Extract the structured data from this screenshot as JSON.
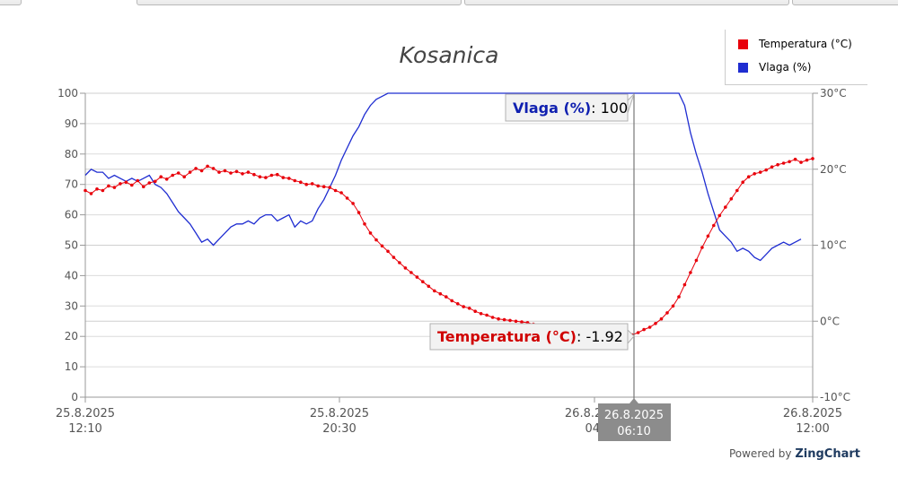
{
  "page": {
    "powered_by_label": "Powered by",
    "powered_by_brand": "ZingChart"
  },
  "chart_data": {
    "type": "line",
    "title": "Kosanica",
    "x_tick_labels": [
      {
        "line1": "25.8.2025",
        "line2": "12:10"
      },
      {
        "line1": "25.8.2025",
        "line2": "20:30"
      },
      {
        "line1": "26.8.2025",
        "line2": "04:"
      },
      {
        "line1": "26.8.2025",
        "line2": "12:00"
      }
    ],
    "y_left": {
      "ticks": [
        "0",
        "10",
        "20",
        "30",
        "40",
        "50",
        "60",
        "70",
        "80",
        "90",
        "100"
      ],
      "range": [
        0,
        100
      ]
    },
    "y_right": {
      "ticks": [
        "-10°C",
        "0°C",
        "10°C",
        "20°C",
        "30°C"
      ],
      "range": [
        -10,
        30
      ]
    },
    "grid": true,
    "legend_position": "top-right",
    "crosshair": {
      "x_label_line1": "26.8.2025",
      "x_label_line2": "06:10"
    },
    "tooltips": {
      "humidity": {
        "series": "Vlaga (%)",
        "value": "100"
      },
      "temperature": {
        "series": "Temperatura (°C)",
        "value": "-1.92"
      }
    },
    "colors": {
      "temperature": "#e8000b",
      "humidity": "#1f2dd1",
      "tooltip_temp": "#d00000",
      "tooltip_hum": "#1020b0"
    },
    "series": [
      {
        "name": "Temperatura (°C)",
        "axis": "right",
        "values": [
          17.2,
          16.8,
          17.4,
          17.2,
          17.8,
          17.6,
          18.1,
          18.3,
          17.9,
          18.5,
          17.7,
          18.2,
          18.4,
          19.0,
          18.7,
          19.2,
          19.5,
          19.0,
          19.6,
          20.1,
          19.8,
          20.4,
          20.1,
          19.6,
          19.8,
          19.5,
          19.7,
          19.4,
          19.6,
          19.3,
          19.0,
          18.9,
          19.2,
          19.3,
          18.9,
          18.8,
          18.5,
          18.3,
          18.0,
          18.1,
          17.8,
          17.7,
          17.6,
          17.2,
          16.9,
          16.2,
          15.5,
          14.3,
          12.8,
          11.6,
          10.7,
          9.9,
          9.2,
          8.4,
          7.7,
          7.0,
          6.4,
          5.8,
          5.2,
          4.6,
          4.0,
          3.6,
          3.2,
          2.7,
          2.3,
          1.9,
          1.7,
          1.3,
          1.0,
          0.8,
          0.5,
          0.3,
          0.2,
          0.1,
          0.0,
          -0.1,
          -0.2,
          -0.4,
          -0.5,
          -0.6,
          -0.7,
          -0.8,
          -0.9,
          -1.0,
          -1.1,
          -1.2,
          -1.3,
          -1.4,
          -1.5,
          -1.6,
          -1.7,
          -1.8,
          -1.9,
          -1.92,
          -1.8,
          -1.5,
          -1.1,
          -0.8,
          -0.3,
          0.3,
          1.1,
          2.0,
          3.2,
          4.8,
          6.4,
          8.0,
          9.7,
          11.2,
          12.6,
          13.9,
          15.0,
          16.1,
          17.2,
          18.3,
          19.0,
          19.4,
          19.6,
          19.9,
          20.3,
          20.6,
          20.8,
          21.0,
          21.3,
          20.9,
          21.2,
          21.4
        ]
      },
      {
        "name": "Vlaga (%)",
        "axis": "left",
        "values": [
          73,
          75,
          74,
          74,
          72,
          73,
          72,
          71,
          72,
          71,
          72,
          73,
          70,
          69,
          67,
          64,
          61,
          59,
          57,
          54,
          51,
          52,
          50,
          52,
          54,
          56,
          57,
          57,
          58,
          57,
          59,
          60,
          60,
          58,
          59,
          60,
          56,
          58,
          57,
          58,
          62,
          65,
          69,
          73,
          78,
          82,
          86,
          89,
          93,
          96,
          98,
          99,
          100,
          100,
          100,
          100,
          100,
          100,
          100,
          100,
          100,
          100,
          100,
          100,
          100,
          100,
          100,
          100,
          100,
          100,
          100,
          100,
          100,
          100,
          100,
          100,
          100,
          100,
          100,
          100,
          100,
          100,
          100,
          100,
          100,
          100,
          100,
          100,
          100,
          100,
          100,
          100,
          100,
          100,
          100,
          100,
          100,
          100,
          100,
          100,
          100,
          100,
          100,
          96,
          87,
          80,
          74,
          67,
          61,
          55,
          53,
          51,
          48,
          49,
          48,
          46,
          45,
          47,
          49,
          50,
          51,
          50,
          51,
          52
        ]
      }
    ]
  }
}
